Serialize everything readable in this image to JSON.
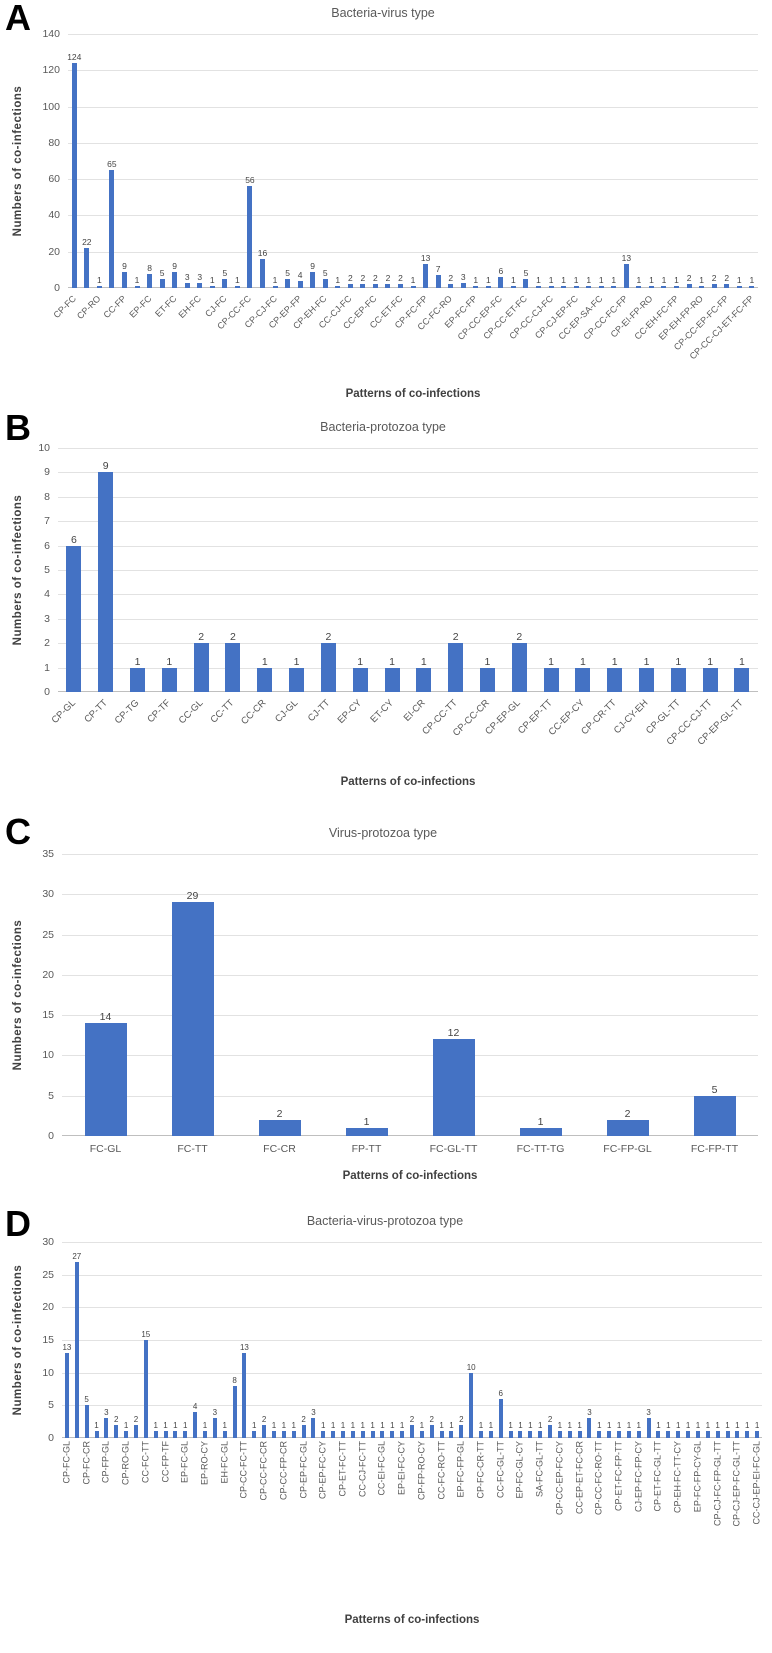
{
  "figure": {
    "y_axis_title": "Numbers of co-infections",
    "x_axis_title": "Patterns of co-infections"
  },
  "chart_data": [
    {
      "panel": "A",
      "type": "bar",
      "title": "Bacteria-virus type",
      "ylabel": "Numbers of co-infections",
      "xlabel": "Patterns of co-infections",
      "ylim": [
        0,
        140
      ],
      "ytick_step": 20,
      "grid": true,
      "legend": false,
      "bar_color": "#4472C4",
      "label_step": 2,
      "categories": [
        "CP-FC",
        "CP-RO",
        "CC-FP",
        "EP-FC",
        "ET-FC",
        "EH-FC",
        "CJ-FC",
        "CP-CC-FC",
        "CP-CJ-FC",
        "CP-EP-FP",
        "CP-EH-FC",
        "CC-CJ-FC",
        "CC-EP-FC",
        "CC-ET-FC",
        "CP-FC-FP",
        "CC-FC-RO",
        "EP-FC-FP",
        "CP-CC-EP-FC",
        "CP-CC-ET-FC",
        "CP-CC-CJ-FC",
        "CP-CJ-EP-FC",
        "CC-EP-SA-FC",
        "CP-CC-FC-FP",
        "CP-EI-FP-RO",
        "CC-EH-FC-FP",
        "EP-EH-FP-RO",
        "CP-CC-EP-FC-FP",
        "CP-CC-CJ-ET-FC-FP"
      ],
      "values": [
        124,
        22,
        1,
        65,
        9,
        1,
        8,
        5,
        9,
        3,
        3,
        1,
        5,
        1,
        56,
        16,
        1,
        5,
        4,
        9,
        5,
        1,
        2,
        2,
        2,
        2,
        2,
        1,
        13,
        7,
        2,
        3,
        1,
        1,
        6,
        1,
        5,
        1,
        1,
        1,
        1,
        1,
        1,
        1,
        13,
        1,
        1,
        1,
        1,
        2,
        1,
        2,
        2,
        1,
        1
      ]
    },
    {
      "panel": "B",
      "type": "bar",
      "title": "Bacteria-protozoa type",
      "ylabel": "Numbers of co-infections",
      "xlabel": "Patterns of co-infections",
      "ylim": [
        0,
        10
      ],
      "ytick_step": 1,
      "grid": true,
      "legend": false,
      "bar_color": "#4472C4",
      "label_step": 1,
      "categories": [
        "CP-GL",
        "CP-TT",
        "CP-TG",
        "CP-TF",
        "CC-GL",
        "CC-TT",
        "CC-CR",
        "CJ-GL",
        "CJ-TT",
        "EP-CY",
        "ET-CY",
        "EI-CR",
        "CP-CC-TT",
        "CP-CC-CR",
        "CP-EP-GL",
        "CP-EP-TT",
        "CC-EP-CY",
        "CP-CR-TT",
        "CJ-CY-EH",
        "CP-GL-TT",
        "CP-CC-CJ-TT",
        "CP-EP-GL-TT"
      ],
      "values": [
        6,
        9,
        1,
        1,
        2,
        2,
        1,
        1,
        2,
        1,
        1,
        1,
        2,
        1,
        2,
        1,
        1,
        1,
        1,
        1,
        1,
        1
      ]
    },
    {
      "panel": "C",
      "type": "bar",
      "title": "Virus-protozoa type",
      "ylabel": "Numbers of co-infections",
      "xlabel": "Patterns of co-infections",
      "ylim": [
        0,
        35
      ],
      "ytick_step": 5,
      "grid": true,
      "legend": false,
      "bar_color": "#4472C4",
      "label_step": 1,
      "categories": [
        "FC-GL",
        "FC-TT",
        "FC-CR",
        "FP-TT",
        "FC-GL-TT",
        "FC-TT-TG",
        "FC-FP-GL",
        "FC-FP-TT"
      ],
      "values": [
        14,
        29,
        2,
        1,
        12,
        1,
        2,
        5
      ]
    },
    {
      "panel": "D",
      "type": "bar",
      "title": "Bacteria-virus-protozoa type",
      "ylabel": "Numbers of co-infections",
      "xlabel": "Patterns of co-infections",
      "ylim": [
        0,
        30
      ],
      "ytick_step": 5,
      "grid": true,
      "legend": false,
      "bar_color": "#4472C4",
      "label_step": 2,
      "categories": [
        "CP-FC-GL",
        "CP-FC-CR",
        "CP-FP-GL",
        "CP-RO-GL",
        "CC-FC-TT",
        "CC-FP-TF",
        "EP-FC-GL",
        "EP-RO-CY",
        "EH-FC-GL",
        "CP-CC-FC-TT",
        "CP-CC-FC-CR",
        "CP-CC-FP-CR",
        "CP-EP-FC-GL",
        "CP-EP-FC-CY",
        "CP-ET-FC-TT",
        "CC-CJ-FC-TT",
        "CC-EI-FC-GL",
        "EP-EI-FC-CY",
        "CP-FP-RO-CY",
        "CC-FC-RO-TT",
        "EP-FC-FP-GL",
        "CP-FC-CR-TT",
        "CC-FC-GL-TT",
        "EP-FC-GL-CY",
        "SA-FC-GL-TT",
        "CP-CC-EP-FC-CY",
        "CC-EP-ET-FC-CR",
        "CP-CC-FC-RO-TT",
        "CP-ET-FC-FP-TT",
        "CJ-EP-FC-FP-CY",
        "CP-ET-FC-GL-TT",
        "CP-EH-FC-TT-CY",
        "EP-FC-FP-CY-GL",
        "CP-CJ-FC-FP-GL-TT",
        "CP-CJ-EP-FC-GL-TT",
        "CC-CJ-EP-EI-FC-GL"
      ],
      "values": [
        13,
        27,
        5,
        1,
        3,
        2,
        1,
        2,
        15,
        1,
        1,
        1,
        1,
        4,
        1,
        3,
        1,
        8,
        13,
        1,
        2,
        1,
        1,
        1,
        2,
        3,
        1,
        1,
        1,
        1,
        1,
        1,
        1,
        1,
        1,
        2,
        1,
        2,
        1,
        1,
        2,
        10,
        1,
        1,
        6,
        1,
        1,
        1,
        1,
        2,
        1,
        1,
        1,
        3,
        1,
        1,
        1,
        1,
        1,
        3,
        1,
        1,
        1,
        1,
        1,
        1,
        1,
        1,
        1,
        1,
        1
      ]
    }
  ]
}
